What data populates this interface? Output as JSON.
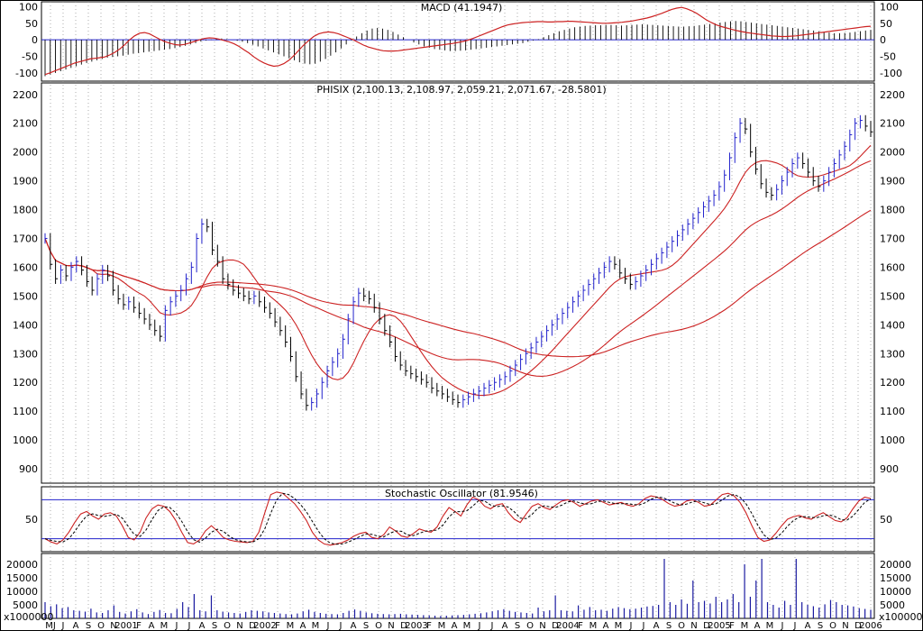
{
  "colors": {
    "frame": "#000000",
    "blue": "#2222cc",
    "red": "#cc2222",
    "grid": "#9a9a9a",
    "bar": "#1a1aa0",
    "stoch_d": "#000000"
  },
  "chart_data": [
    {
      "panel": "macd",
      "type": "bar",
      "title": "MACD (41.1947)",
      "y_ticks": [
        "100",
        "50",
        "0",
        "-50",
        "-100"
      ],
      "ylim": [
        -125,
        115
      ],
      "histogram": [
        -110,
        -105,
        -100,
        -95,
        -90,
        -85,
        -80,
        -75,
        -70,
        -66,
        -62,
        -58,
        -54,
        -52,
        -50,
        -48,
        -45,
        -42,
        -40,
        -38,
        -36,
        -34,
        -32,
        -30,
        -28,
        -25,
        -22,
        -18,
        -14,
        -10,
        -5,
        -2,
        1,
        3,
        4,
        2,
        0,
        -3,
        -6,
        -10,
        -15,
        -20,
        -26,
        -32,
        -38,
        -44,
        -50,
        -56,
        -62,
        -68,
        -72,
        -74,
        -72,
        -66,
        -58,
        -48,
        -38,
        -26,
        -14,
        -2,
        10,
        20,
        28,
        34,
        36,
        34,
        30,
        24,
        16,
        8,
        0,
        -8,
        -14,
        -20,
        -24,
        -28,
        -30,
        -32,
        -34,
        -34,
        -33,
        -32,
        -30,
        -28,
        -26,
        -24,
        -22,
        -20,
        -18,
        -16,
        -14,
        -12,
        -10,
        -6,
        -2,
        2,
        8,
        14,
        20,
        26,
        30,
        34,
        38,
        40,
        42,
        43,
        44,
        44,
        45,
        45,
        44,
        43,
        44,
        45,
        46,
        47,
        46,
        45,
        44,
        43,
        42,
        41,
        40,
        40,
        41,
        42,
        44,
        46,
        48,
        50,
        52,
        54,
        56,
        57,
        56,
        54,
        52,
        50,
        48,
        46,
        44,
        42,
        40,
        38,
        36,
        34,
        32,
        30,
        28,
        26,
        24,
        22,
        20,
        20,
        21,
        22,
        24,
        26,
        28,
        30
      ],
      "macd": [
        -105,
        -100,
        -94,
        -88,
        -82,
        -76,
        -70,
        -66,
        -62,
        -58,
        -56,
        -54,
        -52,
        -46,
        -38,
        -28,
        -15,
        0,
        12,
        20,
        22,
        18,
        10,
        2,
        -5,
        -10,
        -14,
        -16,
        -14,
        -10,
        -5,
        0,
        4,
        6,
        5,
        2,
        -2,
        -6,
        -12,
        -20,
        -30,
        -40,
        -52,
        -62,
        -70,
        -76,
        -80,
        -78,
        -72,
        -62,
        -48,
        -32,
        -16,
        -2,
        10,
        18,
        22,
        24,
        22,
        18,
        12,
        6,
        0,
        -8,
        -16,
        -22,
        -26,
        -30,
        -33,
        -34,
        -34,
        -33,
        -31,
        -29,
        -27,
        -25,
        -23,
        -21,
        -19,
        -17,
        -15,
        -13,
        -11,
        -8,
        -5,
        -1,
        4,
        10,
        16,
        22,
        28,
        34,
        40,
        45,
        48,
        50,
        52,
        53,
        54,
        55,
        55,
        54,
        54,
        55,
        55,
        56,
        56,
        55,
        54,
        53,
        52,
        51,
        50,
        50,
        51,
        52,
        53,
        55,
        57,
        60,
        63,
        66,
        70,
        75,
        80,
        86,
        92,
        96,
        98,
        94,
        88,
        80,
        70,
        60,
        52,
        45,
        40,
        36,
        32,
        28,
        25,
        22,
        20,
        18,
        16,
        14,
        12,
        11,
        10,
        10,
        11,
        12,
        14,
        16,
        18,
        20,
        22,
        24,
        26,
        28,
        30,
        32,
        34,
        36,
        38,
        40,
        41
      ],
      "zero_line": 0
    },
    {
      "panel": "price",
      "type": "ohlc",
      "title": "PHISIX (2,100.13, 2,108.97, 2,059.21, 2,071.67, -28.5801)",
      "y_ticks": [
        "2200",
        "2100",
        "2000",
        "1900",
        "1800",
        "1700",
        "1600",
        "1500",
        "1400",
        "1300",
        "1200",
        "1100",
        "1000",
        "900"
      ],
      "ylim": [
        850,
        2240
      ],
      "x_labels": [
        "MJ",
        "J",
        "A",
        "S",
        "O",
        "N",
        "2001",
        "F",
        "A",
        "M",
        "J",
        "J",
        "A",
        "S",
        "O",
        "N",
        "D",
        "2002",
        "F",
        "M",
        "A",
        "M",
        "J",
        "J",
        "A",
        "S",
        "O",
        "N",
        "D",
        "2003",
        "F",
        "M",
        "A",
        "M",
        "J",
        "J",
        "A",
        "S",
        "O",
        "N",
        "D",
        "2004",
        "F",
        "M",
        "A",
        "M",
        "J",
        "J",
        "A",
        "S",
        "O",
        "N",
        "D",
        "2005",
        "F",
        "M",
        "A",
        "M",
        "J",
        "J",
        "A",
        "S",
        "O",
        "N",
        "D",
        "2006"
      ],
      "close": [
        1700,
        1610,
        1560,
        1590,
        1570,
        1600,
        1620,
        1590,
        1550,
        1520,
        1560,
        1590,
        1570,
        1520,
        1490,
        1470,
        1480,
        1460,
        1440,
        1420,
        1400,
        1380,
        1360,
        1450,
        1480,
        1500,
        1520,
        1560,
        1600,
        1700,
        1750,
        1740,
        1660,
        1620,
        1560,
        1540,
        1520,
        1510,
        1500,
        1490,
        1500,
        1480,
        1460,
        1440,
        1410,
        1380,
        1340,
        1290,
        1220,
        1160,
        1120,
        1130,
        1160,
        1200,
        1240,
        1270,
        1300,
        1350,
        1420,
        1480,
        1510,
        1500,
        1490,
        1460,
        1420,
        1380,
        1340,
        1290,
        1260,
        1240,
        1230,
        1220,
        1210,
        1200,
        1180,
        1170,
        1160,
        1150,
        1140,
        1130,
        1140,
        1150,
        1160,
        1170,
        1180,
        1190,
        1200,
        1210,
        1220,
        1240,
        1260,
        1280,
        1300,
        1320,
        1340,
        1360,
        1380,
        1400,
        1420,
        1440,
        1460,
        1480,
        1500,
        1520,
        1540,
        1560,
        1580,
        1600,
        1620,
        1610,
        1580,
        1560,
        1540,
        1550,
        1570,
        1590,
        1610,
        1630,
        1650,
        1670,
        1690,
        1710,
        1730,
        1750,
        1770,
        1790,
        1810,
        1830,
        1850,
        1880,
        1920,
        1980,
        2050,
        2100,
        2080,
        2000,
        1940,
        1890,
        1860,
        1850,
        1870,
        1900,
        1930,
        1960,
        1980,
        1960,
        1930,
        1900,
        1880,
        1900,
        1930,
        1960,
        1990,
        2020,
        2060,
        2100,
        2110,
        2090,
        2070
      ]
    },
    {
      "panel": "stochastic",
      "type": "line",
      "title": "Stochastic Oscillator (81.9546)",
      "y_ticks": [
        "50"
      ],
      "ylim": [
        0,
        100
      ],
      "bands": [
        20,
        80
      ],
      "k": [
        20,
        15,
        12,
        18,
        30,
        45,
        58,
        62,
        55,
        50,
        58,
        60,
        55,
        40,
        22,
        18,
        30,
        52,
        66,
        72,
        70,
        62,
        48,
        30,
        14,
        12,
        18,
        32,
        40,
        32,
        22,
        18,
        16,
        15,
        14,
        16,
        30,
        60,
        88,
        92,
        90,
        82,
        74,
        62,
        48,
        30,
        18,
        12,
        10,
        12,
        14,
        18,
        24,
        28,
        30,
        22,
        20,
        26,
        38,
        32,
        24,
        22,
        28,
        35,
        32,
        30,
        38,
        55,
        68,
        62,
        55,
        72,
        84,
        80,
        70,
        66,
        72,
        74,
        60,
        50,
        45,
        58,
        70,
        74,
        68,
        65,
        72,
        78,
        80,
        76,
        70,
        74,
        78,
        80,
        76,
        72,
        74,
        76,
        72,
        70,
        74,
        82,
        86,
        84,
        80,
        74,
        70,
        72,
        78,
        80,
        76,
        70,
        72,
        80,
        88,
        90,
        86,
        76,
        60,
        40,
        22,
        16,
        18,
        28,
        40,
        50,
        54,
        56,
        52,
        50,
        56,
        60,
        54,
        48,
        46,
        52,
        66,
        78,
        84,
        82
      ]
    },
    {
      "panel": "volume",
      "type": "bar",
      "title": "",
      "y_ticks": [
        "20000",
        "15000",
        "10000",
        "5000"
      ],
      "ylim": [
        0,
        24000
      ],
      "axis_unit": "x1000000",
      "values": [
        6000,
        4500,
        5200,
        3800,
        4200,
        3000,
        2800,
        2500,
        3600,
        2200,
        2000,
        3000,
        4800,
        2400,
        1800,
        2600,
        3400,
        2200,
        1600,
        2400,
        3100,
        2000,
        1900,
        3500,
        6000,
        4200,
        9000,
        3000,
        2600,
        8500,
        3000,
        2500,
        2200,
        2000,
        1800,
        2400,
        3000,
        2800,
        2600,
        2200,
        2000,
        1800,
        1600,
        1500,
        1800,
        2600,
        3200,
        2400,
        2000,
        1700,
        1600,
        1500,
        2000,
        2800,
        3300,
        2800,
        2200,
        1900,
        1700,
        1600,
        1500,
        1600,
        1700,
        1500,
        1400,
        1300,
        1200,
        1100,
        1000,
        900,
        1000,
        1100,
        1200,
        1300,
        1500,
        1700,
        1900,
        2200,
        2600,
        3000,
        3400,
        2800,
        2400,
        2200,
        2000,
        1800,
        4000,
        2600,
        3000,
        8500,
        3000,
        2800,
        2600,
        4800,
        3200,
        4200,
        3000,
        3200,
        2800,
        3600,
        4200,
        3800,
        3400,
        3600,
        4000,
        4400,
        4600,
        5000,
        22000,
        6000,
        5000,
        7000,
        5400,
        14000,
        6000,
        6500,
        5500,
        8000,
        6000,
        7000,
        9000,
        6000,
        20000,
        8000,
        14000,
        22000,
        6000,
        5000,
        4000,
        6500,
        5000,
        22000,
        6000,
        5000,
        4500,
        4000,
        5200,
        6800,
        6000,
        5000,
        4800,
        4400,
        3800,
        3500,
        3200
      ]
    }
  ]
}
